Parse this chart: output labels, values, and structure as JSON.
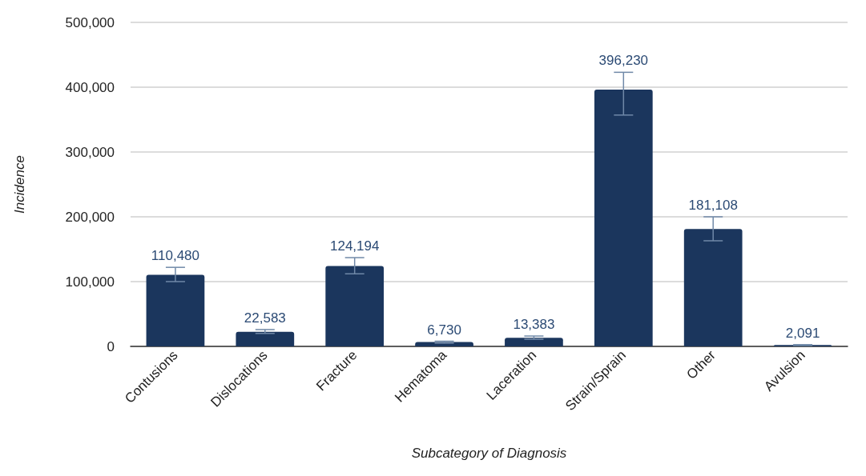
{
  "chart_data": {
    "type": "bar",
    "xlabel": "Subcategory of Diagnosis",
    "ylabel": "Incidence",
    "categories": [
      "Contusions",
      "Dislocations",
      "Fracture",
      "Hematoma",
      "Laceration",
      "Strain/Sprain",
      "Other",
      "Avulsion"
    ],
    "values": [
      110480,
      22583,
      124194,
      6730,
      13383,
      396230,
      181108,
      2091
    ],
    "value_labels": [
      "110,480",
      "22,583",
      "124,194",
      "6,730",
      "13,383",
      "396,230",
      "181,108",
      "2,091"
    ],
    "errors": [
      [
        100000,
        122000
      ],
      [
        20000,
        26000
      ],
      [
        112000,
        137000
      ],
      [
        5000,
        8000
      ],
      [
        11000,
        16000
      ],
      [
        357000,
        423000
      ],
      [
        163000,
        200000
      ],
      [
        1500,
        2700
      ]
    ],
    "color": "#1b365d",
    "ylim": [
      0,
      500000
    ],
    "yticks": [
      0,
      {
        "value": 100000,
        "label": "100,000"
      },
      {
        "value": 200000,
        "label": "200,000"
      },
      {
        "value": 300000,
        "label": "300,000"
      },
      {
        "value": 400000,
        "label": "400,000"
      },
      {
        "value": 500000,
        "label": "500,000"
      }
    ],
    "grid": "y"
  }
}
